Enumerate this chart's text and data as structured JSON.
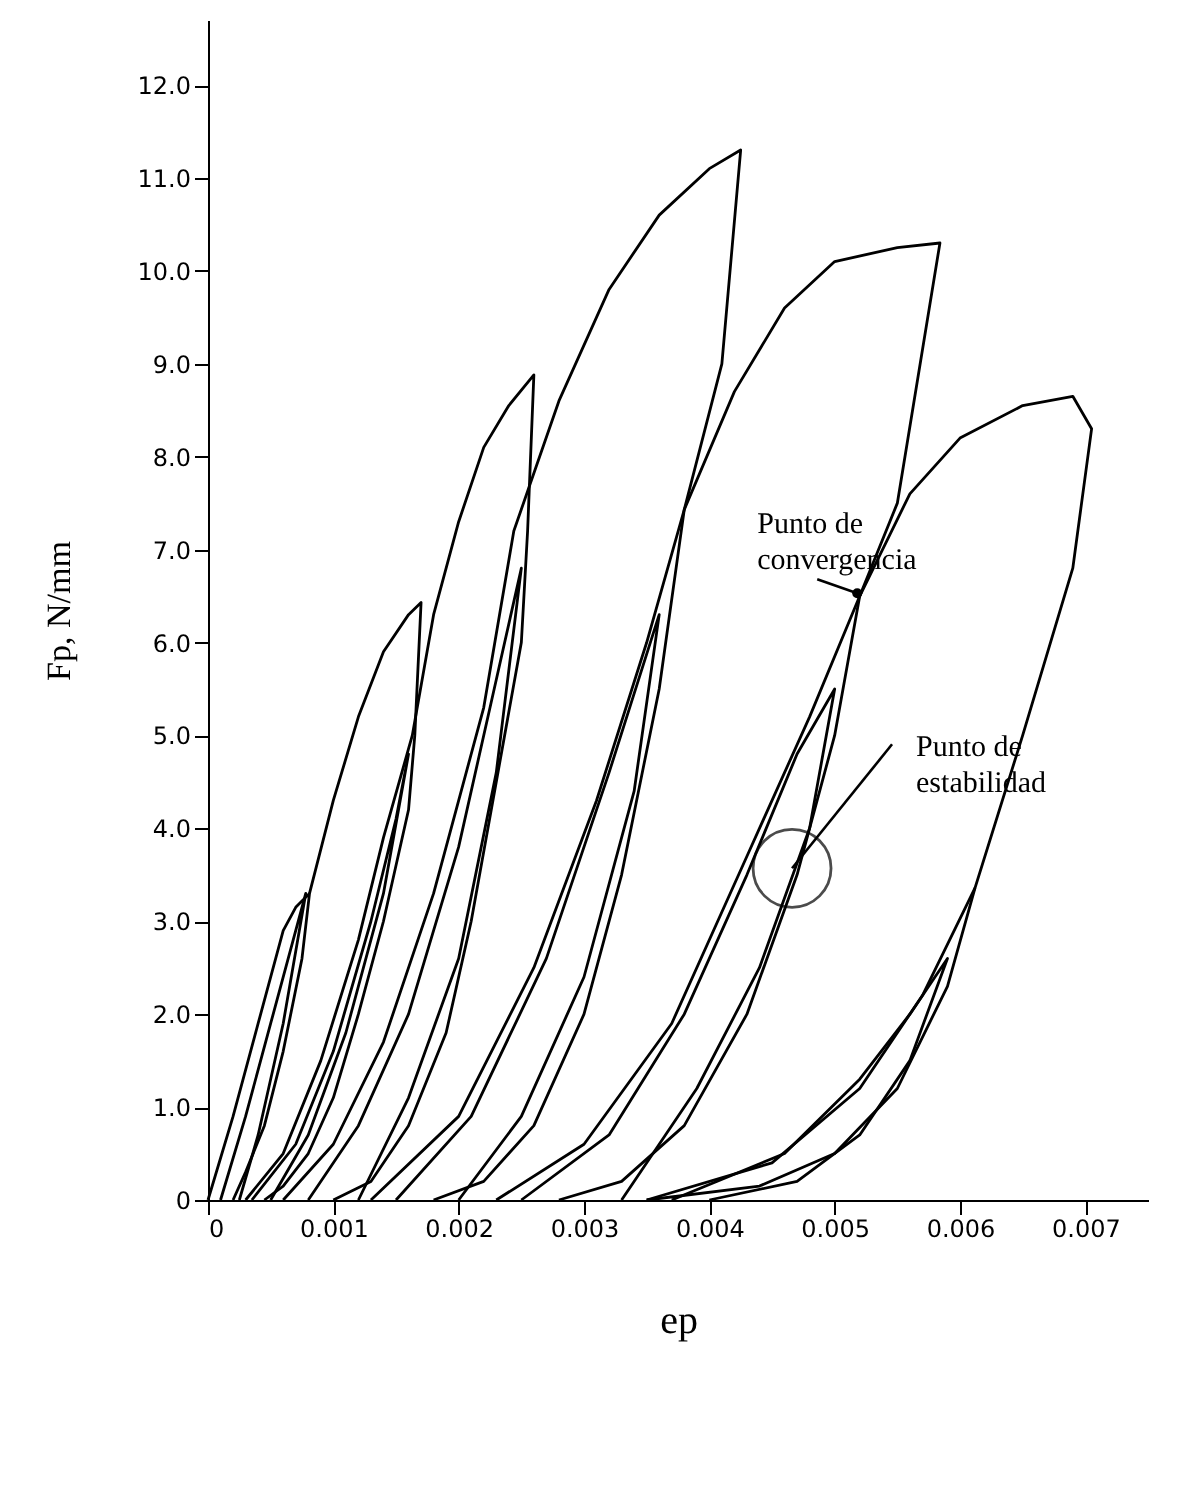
{
  "chart_data": {
    "type": "line",
    "xlabel": "ep",
    "ylabel": "Fp, N/mm",
    "xlim": [
      0,
      0.0075
    ],
    "ylim": [
      0,
      12.7
    ],
    "xticks": [
      0,
      0.001,
      0.002,
      0.003,
      0.004,
      0.005,
      0.006,
      0.007
    ],
    "yticks": [
      0,
      {
        "value": 1,
        "label": "1.0"
      },
      {
        "value": 2,
        "label": "2.0"
      },
      {
        "value": 3,
        "label": "3.0"
      },
      {
        "value": 4,
        "label": "4.0"
      },
      {
        "value": 5,
        "label": "5.0"
      },
      {
        "value": 6,
        "label": "6.0"
      },
      {
        "value": 7,
        "label": "7.0"
      },
      {
        "value": 8,
        "label": "8.0"
      },
      {
        "value": 9,
        "label": "9.0"
      },
      {
        "value": 10,
        "label": "10.0"
      },
      {
        "value": 11,
        "label": "11.0"
      },
      {
        "value": 12,
        "label": "12.0"
      }
    ],
    "grid": false,
    "marker": "none",
    "line_style": "solid",
    "series": [
      {
        "color": "#000000",
        "x": [
          0,
          0.0002,
          0.0004,
          0.0006,
          0.0007,
          0.00081,
          0.00075,
          0.0006,
          0.00045,
          0.0003,
          0.0002
        ],
        "values": [
          0,
          0.9,
          1.9,
          2.9,
          3.15,
          3.3,
          2.6,
          1.6,
          0.8,
          0.3,
          0
        ]
      },
      {
        "color": "#000000",
        "x": [
          0.0001,
          0.0003,
          0.0005,
          0.00068,
          0.00078,
          0.0006,
          0.0004,
          0.00025
        ],
        "values": [
          0,
          0.9,
          1.9,
          2.8,
          3.3,
          1.9,
          0.7,
          0
        ]
      },
      {
        "color": "#000000",
        "x": [
          0.00081,
          0.001,
          0.0012,
          0.0014,
          0.0016,
          0.0017,
          0.00165,
          0.0016,
          0.0014,
          0.0012,
          0.001,
          0.0008,
          0.0006,
          0.00045
        ],
        "values": [
          3.3,
          4.3,
          5.2,
          5.9,
          6.3,
          6.43,
          5.0,
          4.2,
          3.0,
          2.0,
          1.1,
          0.5,
          0.15,
          0
        ]
      },
      {
        "color": "#000000",
        "x": [
          0.00035,
          0.0007,
          0.001,
          0.0013,
          0.0015,
          0.0016,
          0.0014,
          0.0011,
          0.0008,
          0.0005
        ],
        "values": [
          0,
          0.6,
          1.6,
          3.0,
          4.1,
          4.8,
          3.3,
          1.8,
          0.7,
          0
        ]
      },
      {
        "color": "#000000",
        "x": [
          0.0003,
          0.0006,
          0.0009,
          0.0012,
          0.0014,
          0.00163,
          0.0018,
          0.002,
          0.0022,
          0.0024,
          0.0026,
          0.00255,
          0.0025,
          0.0023,
          0.0021,
          0.0019,
          0.0016,
          0.0013,
          0.001
        ],
        "values": [
          0,
          0.5,
          1.5,
          2.8,
          3.9,
          5.0,
          6.3,
          7.3,
          8.1,
          8.55,
          8.88,
          7.2,
          6.0,
          4.5,
          3.0,
          1.8,
          0.8,
          0.2,
          0
        ]
      },
      {
        "color": "#000000",
        "x": [
          0.0008,
          0.0012,
          0.0016,
          0.002,
          0.0023,
          0.0025,
          0.0023,
          0.002,
          0.0016,
          0.0012
        ],
        "values": [
          0,
          0.8,
          2.0,
          3.8,
          5.6,
          6.8,
          4.6,
          2.6,
          1.1,
          0
        ]
      },
      {
        "color": "#000000",
        "x": [
          0.0006,
          0.001,
          0.0014,
          0.0018,
          0.0022,
          0.00244,
          0.0028,
          0.0032,
          0.0036,
          0.004,
          0.00425,
          0.0041,
          0.0038,
          0.0036,
          0.0033,
          0.003,
          0.0026,
          0.0022,
          0.0018
        ],
        "values": [
          0,
          0.6,
          1.7,
          3.3,
          5.3,
          7.2,
          8.6,
          9.8,
          10.6,
          11.1,
          11.3,
          9.0,
          7.43,
          5.5,
          3.5,
          2.0,
          0.8,
          0.2,
          0
        ]
      },
      {
        "color": "#000000",
        "x": [
          0.0015,
          0.0021,
          0.0027,
          0.0032,
          0.0036,
          0.0034,
          0.003,
          0.0025,
          0.002
        ],
        "values": [
          0,
          0.9,
          2.6,
          4.6,
          6.3,
          4.4,
          2.4,
          0.9,
          0
        ]
      },
      {
        "color": "#000000",
        "x": [
          0.0013,
          0.002,
          0.0026,
          0.0031,
          0.0035,
          0.0038,
          0.0042,
          0.0046,
          0.005,
          0.0055,
          0.00584,
          0.0055,
          0.0052,
          0.005,
          0.0047,
          0.0043,
          0.0038,
          0.0033,
          0.0028
        ],
        "values": [
          0,
          0.9,
          2.5,
          4.3,
          6.0,
          7.43,
          8.7,
          9.6,
          10.1,
          10.25,
          10.3,
          7.5,
          6.5,
          5.0,
          3.5,
          2.0,
          0.8,
          0.2,
          0
        ]
      },
      {
        "color": "#000000",
        "x": [
          0.0025,
          0.0032,
          0.0038,
          0.0043,
          0.0047,
          0.005,
          0.0048,
          0.0044,
          0.0039,
          0.0033
        ],
        "values": [
          0,
          0.7,
          2.0,
          3.5,
          4.8,
          5.5,
          4.0,
          2.5,
          1.2,
          0
        ]
      },
      {
        "color": "#000000",
        "x": [
          0.0023,
          0.003,
          0.0037,
          0.0043,
          0.0048,
          0.0052,
          0.0056,
          0.006,
          0.0065,
          0.0069,
          0.00705,
          0.0069,
          0.0065,
          0.00612,
          0.0059,
          0.0055,
          0.005,
          0.0044,
          0.0035
        ],
        "values": [
          0,
          0.6,
          1.9,
          3.7,
          5.2,
          6.5,
          7.6,
          8.2,
          8.55,
          8.65,
          8.3,
          6.8,
          5.0,
          3.36,
          2.3,
          1.2,
          0.5,
          0.15,
          0
        ]
      },
      {
        "color": "#000000",
        "x": [
          0.0035,
          0.0045,
          0.0052,
          0.0057,
          0.00612
        ],
        "values": [
          0,
          0.4,
          1.2,
          2.2,
          3.36
        ]
      },
      {
        "color": "#000000",
        "x": [
          0.0037,
          0.0046,
          0.0052,
          0.0056,
          0.0059,
          0.0056,
          0.0052,
          0.0047,
          0.004
        ],
        "values": [
          0,
          0.5,
          1.3,
          2.0,
          2.6,
          1.5,
          0.7,
          0.2,
          0
        ]
      }
    ],
    "annotations": [
      {
        "text": "Punto de\nconvergencia",
        "x": 0.00518,
        "y": 6.53
      },
      {
        "text": "Punto de\nestabilidad",
        "x": 0.00466,
        "y": 3.57
      }
    ]
  }
}
